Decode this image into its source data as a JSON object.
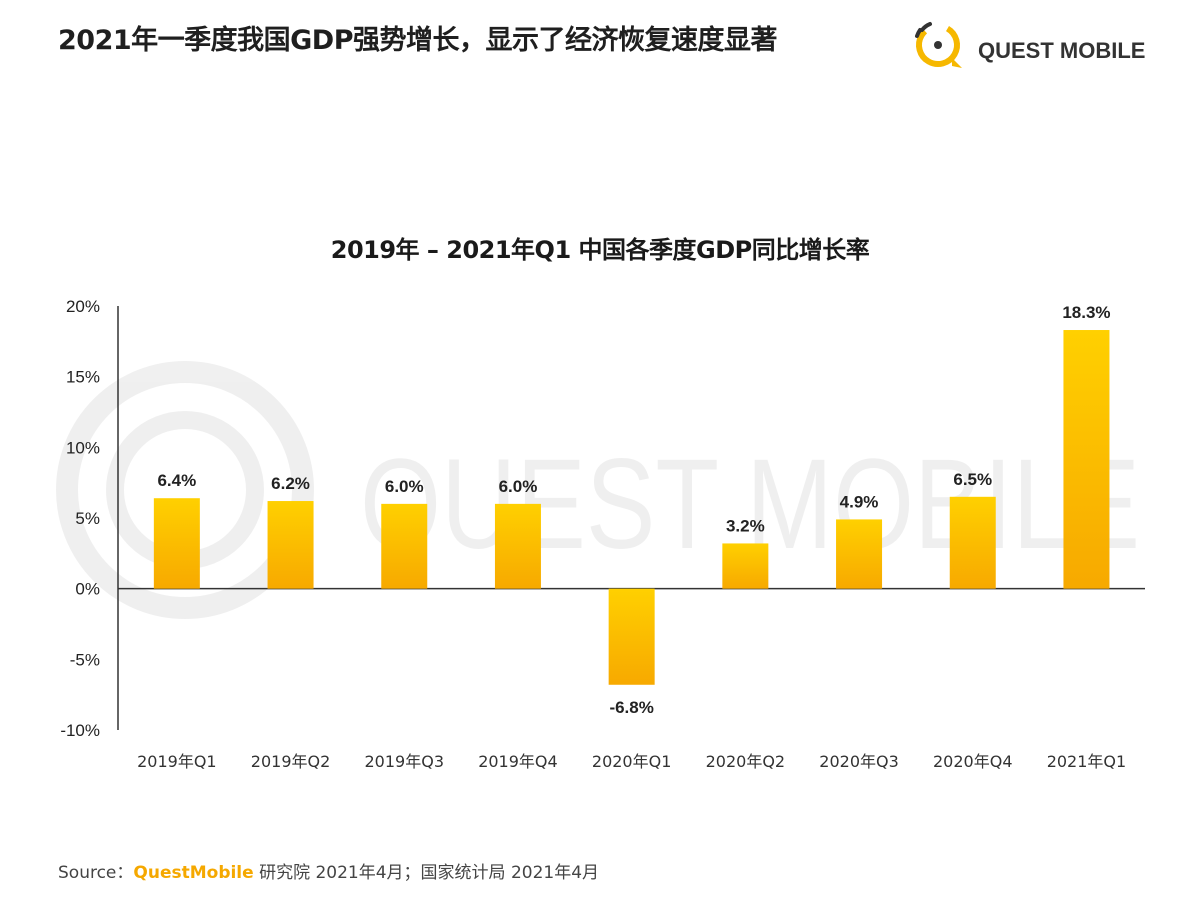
{
  "page": {
    "title": "2021年一季度我国GDP强势增长，显示了经济恢复速度显著"
  },
  "brand": {
    "name": "QUEST MOBILE",
    "icon": "quest-mobile-logo",
    "accent": "#f6b800",
    "watermark_text": "QUEST MOBILE"
  },
  "chart_data": {
    "type": "bar",
    "title": "2019年 – 2021年Q1 中国各季度GDP同比增长率",
    "categories": [
      "2019年Q1",
      "2019年Q2",
      "2019年Q3",
      "2019年Q4",
      "2020年Q1",
      "2020年Q2",
      "2020年Q3",
      "2020年Q4",
      "2021年Q1"
    ],
    "values": [
      6.4,
      6.2,
      6.0,
      6.0,
      -6.8,
      3.2,
      4.9,
      6.5,
      18.3
    ],
    "value_labels": [
      "6.4%",
      "6.2%",
      "6.0%",
      "6.0%",
      "-6.8%",
      "3.2%",
      "4.9%",
      "6.5%",
      "18.3%"
    ],
    "ylim": [
      -10,
      20
    ],
    "yticks": [
      20,
      15,
      10,
      5,
      0,
      -5,
      -10
    ],
    "ytick_labels": [
      "20%",
      "15%",
      "10%",
      "5%",
      "0%",
      "-5%",
      "-10%"
    ],
    "xlabel": "",
    "ylabel": "",
    "grid": false,
    "bar_color_top": "#ffd000",
    "bar_color_bottom": "#f7a900"
  },
  "source": {
    "prefix": "Source：",
    "brand": "QuestMobile",
    "rest": " 研究院 2021年4月；国家统计局 2021年4月"
  }
}
